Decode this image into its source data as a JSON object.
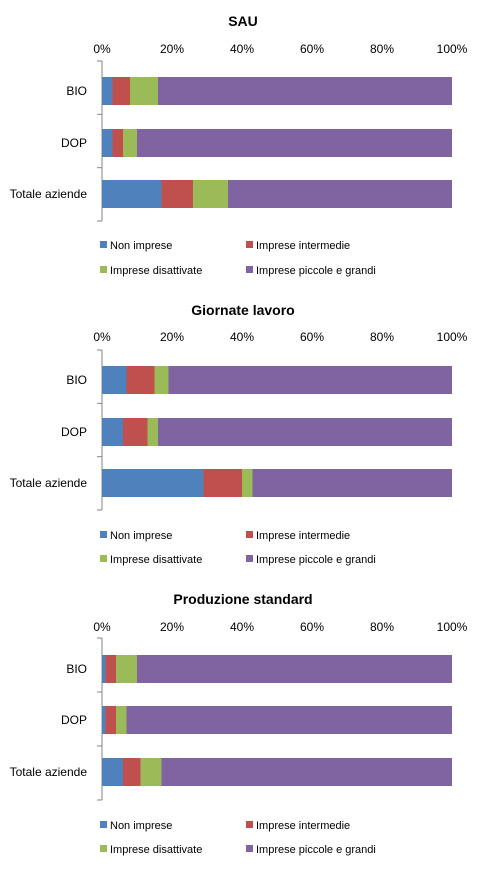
{
  "chart_data": [
    {
      "type": "bar",
      "stacked": true,
      "orientation": "horizontal",
      "title": "SAU",
      "categories": [
        "BIO",
        "DOP",
        "Totale aziende"
      ],
      "xlim": [
        0,
        100
      ],
      "xticks": [
        "0%",
        "20%",
        "40%",
        "60%",
        "80%",
        "100%"
      ],
      "series": [
        {
          "name": "Non imprese",
          "values": [
            3,
            3,
            17
          ]
        },
        {
          "name": "Imprese intermedie",
          "values": [
            5,
            3,
            9
          ]
        },
        {
          "name": "Imprese disattivate",
          "values": [
            8,
            4,
            10
          ]
        },
        {
          "name": "Imprese piccole e grandi",
          "values": [
            84,
            90,
            64
          ]
        }
      ]
    },
    {
      "type": "bar",
      "stacked": true,
      "orientation": "horizontal",
      "title": "Giornate lavoro",
      "categories": [
        "BIO",
        "DOP",
        "Totale aziende"
      ],
      "xlim": [
        0,
        100
      ],
      "xticks": [
        "0%",
        "20%",
        "40%",
        "60%",
        "80%",
        "100%"
      ],
      "series": [
        {
          "name": "Non imprese",
          "values": [
            7,
            6,
            29
          ]
        },
        {
          "name": "Imprese intermedie",
          "values": [
            8,
            7,
            11
          ]
        },
        {
          "name": "Imprese disattivate",
          "values": [
            4,
            3,
            3
          ]
        },
        {
          "name": "Imprese piccole e grandi",
          "values": [
            81,
            84,
            57
          ]
        }
      ]
    },
    {
      "type": "bar",
      "stacked": true,
      "orientation": "horizontal",
      "title": "Produzione standard",
      "categories": [
        "BIO",
        "DOP",
        "Totale aziende"
      ],
      "xlim": [
        0,
        100
      ],
      "xticks": [
        "0%",
        "20%",
        "40%",
        "60%",
        "80%",
        "100%"
      ],
      "series": [
        {
          "name": "Non imprese",
          "values": [
            1,
            1,
            6
          ]
        },
        {
          "name": "Imprese intermedie",
          "values": [
            3,
            3,
            5
          ]
        },
        {
          "name": "Imprese disattivate",
          "values": [
            6,
            3,
            6
          ]
        },
        {
          "name": "Imprese piccole e grandi",
          "values": [
            90,
            93,
            83
          ]
        }
      ]
    }
  ],
  "colors": {
    "series": [
      "#4f81bd",
      "#c0504d",
      "#9bbb59",
      "#8064a2"
    ],
    "axis": "#868686"
  }
}
